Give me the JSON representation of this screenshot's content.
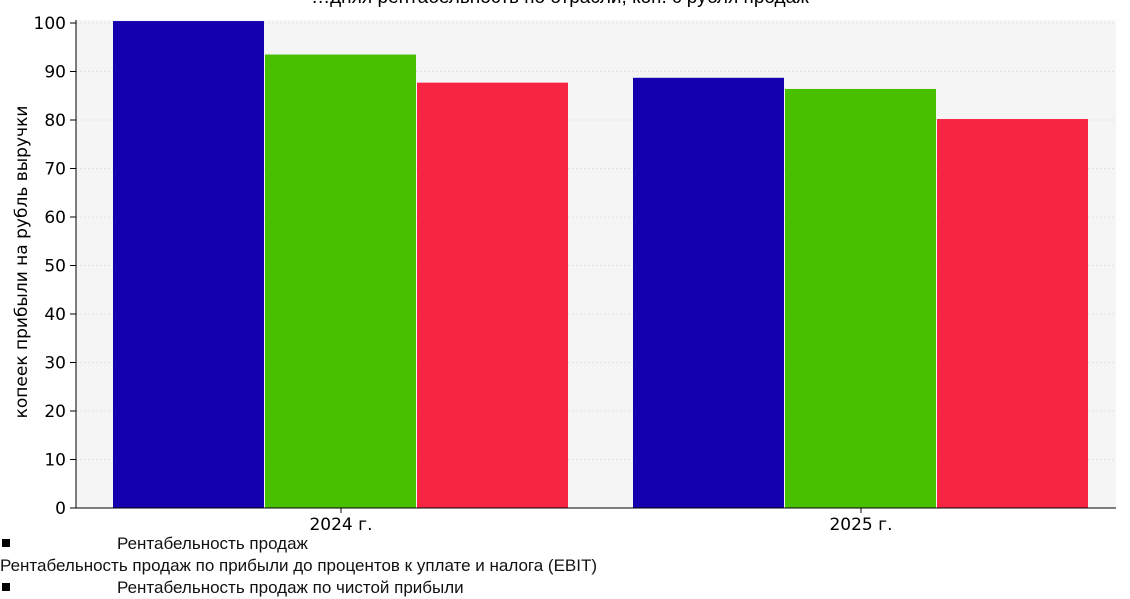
{
  "chart_data": {
    "type": "bar",
    "title": "…дняя рентабельность по отрасли, коп. с рубля продаж",
    "ylabel": "копеек прибыли на рубль выручки",
    "xlabel": "",
    "ylim": [
      0,
      100
    ],
    "yticks": [
      "0",
      "10",
      "20",
      "30",
      "40",
      "50",
      "60",
      "70",
      "80",
      "90",
      "100"
    ],
    "categories": [
      "2024 г.",
      "2025 г."
    ],
    "series": [
      {
        "name": "Рентабельность продаж",
        "color": "#1500b0",
        "values": [
          100.4,
          88.7
        ]
      },
      {
        "name": "Рентабельность продаж по прибыли до процентов к уплате и налога (EBIT)",
        "color": "#48c000",
        "values": [
          93.5,
          86.4
        ]
      },
      {
        "name": "Рентабельность продаж по чистой прибыли",
        "color": "#f72444",
        "values": [
          87.7,
          80.2
        ]
      }
    ],
    "grid": true,
    "legend_position": "bottom"
  },
  "legend": {
    "items": [
      {
        "label": "Рентабельность продаж",
        "marker": true
      },
      {
        "label": "Рентабельность продаж по прибыли до процентов к уплате и налога (EBIT)",
        "marker": false
      },
      {
        "label": "Рентабельность продаж по чистой прибыли",
        "marker": true
      }
    ]
  }
}
